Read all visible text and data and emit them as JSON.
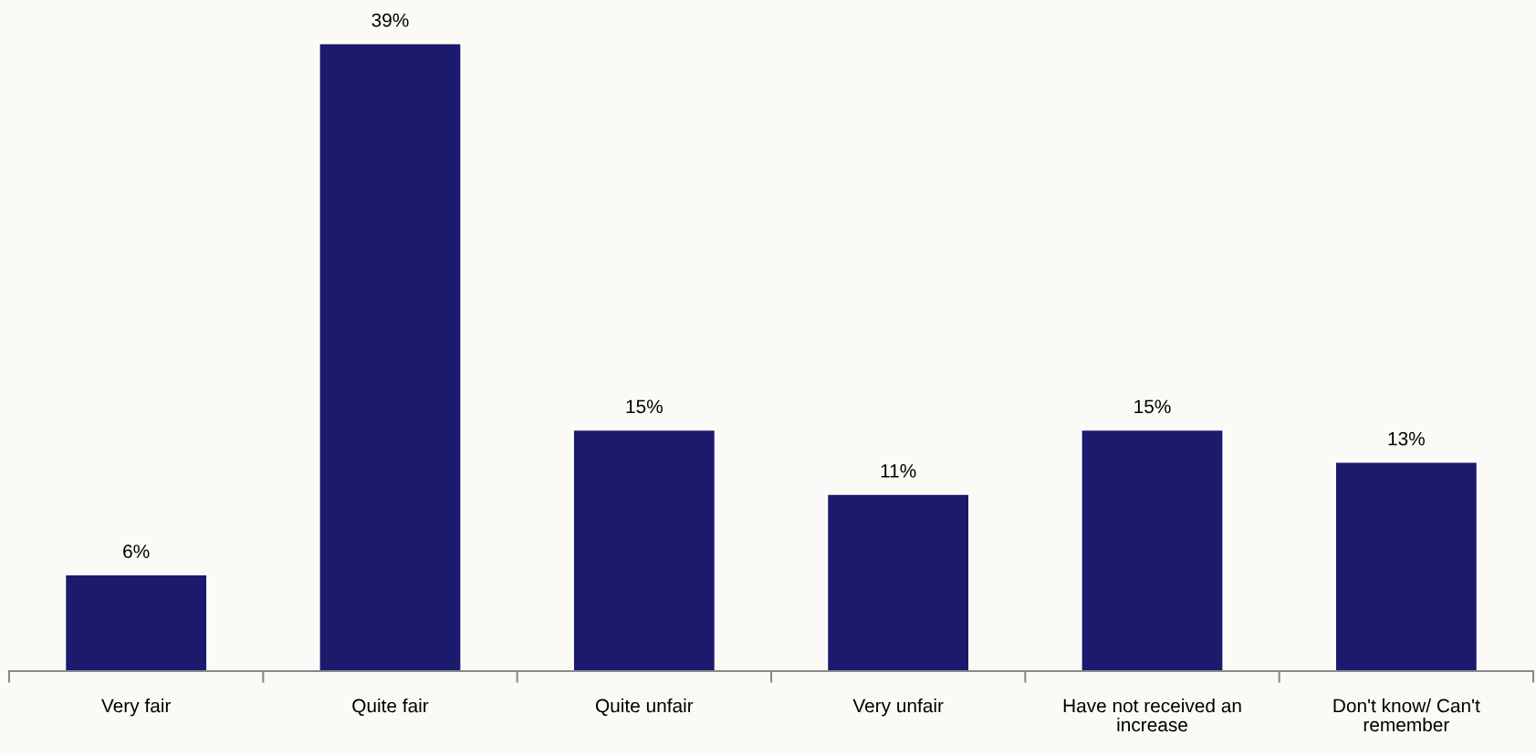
{
  "chart_data": {
    "type": "bar",
    "categories": [
      "Very fair",
      "Quite fair",
      "Quite unfair",
      "Very unfair",
      "Have not received an increase",
      "Don't know/ Can't remember"
    ],
    "values": [
      6,
      39,
      15,
      11,
      15,
      13
    ],
    "value_labels": [
      "6%",
      "39%",
      "15%",
      "11%",
      "15%",
      "13%"
    ],
    "color": "#1b1a6d",
    "grid": false,
    "legend": false
  }
}
